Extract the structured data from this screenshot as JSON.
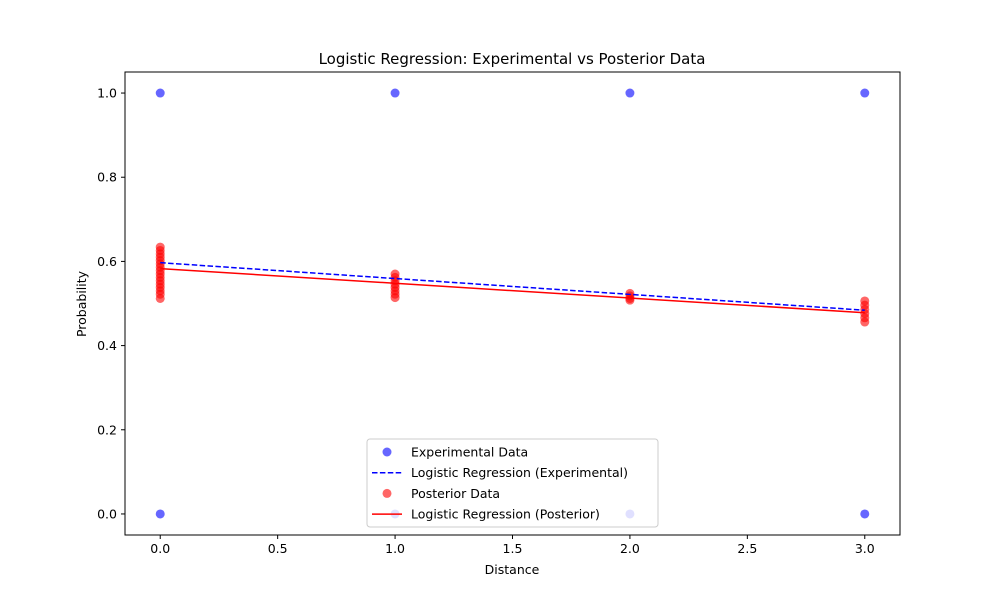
{
  "chart_data": {
    "type": "scatter",
    "title": "Logistic Regression: Experimental vs Posterior Data",
    "xlabel": "Distance",
    "ylabel": "Probability",
    "xlim": [
      -0.15,
      3.15
    ],
    "ylim": [
      -0.05,
      1.05
    ],
    "xticks": [
      0.0,
      0.5,
      1.0,
      1.5,
      2.0,
      2.5,
      3.0
    ],
    "xtick_labels": [
      "0.0",
      "0.5",
      "1.0",
      "1.5",
      "2.0",
      "2.5",
      "3.0"
    ],
    "yticks": [
      0.0,
      0.2,
      0.4,
      0.6,
      0.8,
      1.0
    ],
    "ytick_labels": [
      "0.0",
      "0.2",
      "0.4",
      "0.6",
      "0.8",
      "1.0"
    ],
    "grid": false,
    "legend_position": "lower center",
    "series": [
      {
        "name": "Experimental Data",
        "kind": "scatter",
        "color": "#0000ff",
        "points": [
          {
            "x": 0,
            "y": 1
          },
          {
            "x": 0,
            "y": 0
          },
          {
            "x": 1,
            "y": 1
          },
          {
            "x": 1,
            "y": 0
          },
          {
            "x": 2,
            "y": 1
          },
          {
            "x": 2,
            "y": 0
          },
          {
            "x": 3,
            "y": 1
          },
          {
            "x": 3,
            "y": 0
          }
        ]
      },
      {
        "name": "Logistic Regression (Experimental)",
        "kind": "line",
        "style": "dashed",
        "color": "#0000ff",
        "points": [
          {
            "x": 0,
            "y": 0.597
          },
          {
            "x": 3,
            "y": 0.484
          }
        ]
      },
      {
        "name": "Posterior Data",
        "kind": "scatter",
        "color": "#ff0000",
        "points": [
          {
            "x": 0,
            "y": 0.634
          },
          {
            "x": 0,
            "y": 0.626
          },
          {
            "x": 0,
            "y": 0.618
          },
          {
            "x": 0,
            "y": 0.61
          },
          {
            "x": 0,
            "y": 0.602
          },
          {
            "x": 0,
            "y": 0.594
          },
          {
            "x": 0,
            "y": 0.586
          },
          {
            "x": 0,
            "y": 0.578
          },
          {
            "x": 0,
            "y": 0.57
          },
          {
            "x": 0,
            "y": 0.562
          },
          {
            "x": 0,
            "y": 0.554
          },
          {
            "x": 0,
            "y": 0.546
          },
          {
            "x": 0,
            "y": 0.538
          },
          {
            "x": 0,
            "y": 0.53
          },
          {
            "x": 0,
            "y": 0.522
          },
          {
            "x": 0,
            "y": 0.512
          },
          {
            "x": 1,
            "y": 0.57
          },
          {
            "x": 1,
            "y": 0.562
          },
          {
            "x": 1,
            "y": 0.554
          },
          {
            "x": 1,
            "y": 0.546
          },
          {
            "x": 1,
            "y": 0.538
          },
          {
            "x": 1,
            "y": 0.53
          },
          {
            "x": 1,
            "y": 0.522
          },
          {
            "x": 1,
            "y": 0.514
          },
          {
            "x": 2,
            "y": 0.524
          },
          {
            "x": 2,
            "y": 0.518
          },
          {
            "x": 2,
            "y": 0.512
          },
          {
            "x": 2,
            "y": 0.508
          },
          {
            "x": 3,
            "y": 0.506
          },
          {
            "x": 3,
            "y": 0.496
          },
          {
            "x": 3,
            "y": 0.486
          },
          {
            "x": 3,
            "y": 0.476
          },
          {
            "x": 3,
            "y": 0.466
          },
          {
            "x": 3,
            "y": 0.456
          }
        ]
      },
      {
        "name": "Logistic Regression (Posterior)",
        "kind": "line",
        "style": "solid",
        "color": "#ff0000",
        "points": [
          {
            "x": 0,
            "y": 0.583
          },
          {
            "x": 3,
            "y": 0.478
          }
        ]
      }
    ]
  }
}
